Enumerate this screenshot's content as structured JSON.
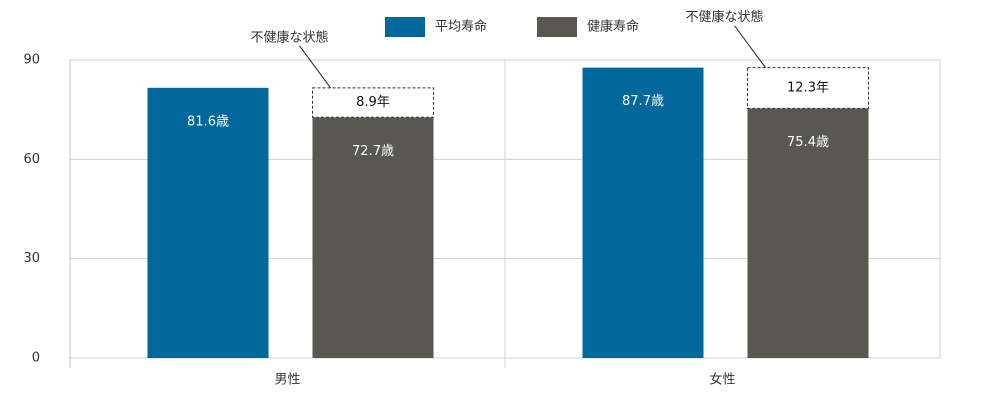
{
  "chart_data": {
    "type": "bar",
    "categories": [
      "男性",
      "女性"
    ],
    "series": [
      {
        "name": "平均寿命",
        "color": "#02679a",
        "values": [
          81.6,
          87.7
        ],
        "value_labels": [
          "81.6歳",
          "87.7歳"
        ]
      },
      {
        "name": "健康寿命",
        "color": "#585850",
        "values": [
          72.7,
          75.4
        ],
        "value_labels": [
          "72.7歳",
          "75.4歳"
        ]
      }
    ],
    "stack_segment": {
      "label": "不健康な状態",
      "on_series": 1,
      "values": [
        8.9,
        12.3
      ],
      "value_labels": [
        "8.9年",
        "12.3年"
      ]
    },
    "ylim": [
      0,
      90
    ],
    "yticks": [
      0,
      30,
      60,
      90
    ],
    "grid": true
  }
}
